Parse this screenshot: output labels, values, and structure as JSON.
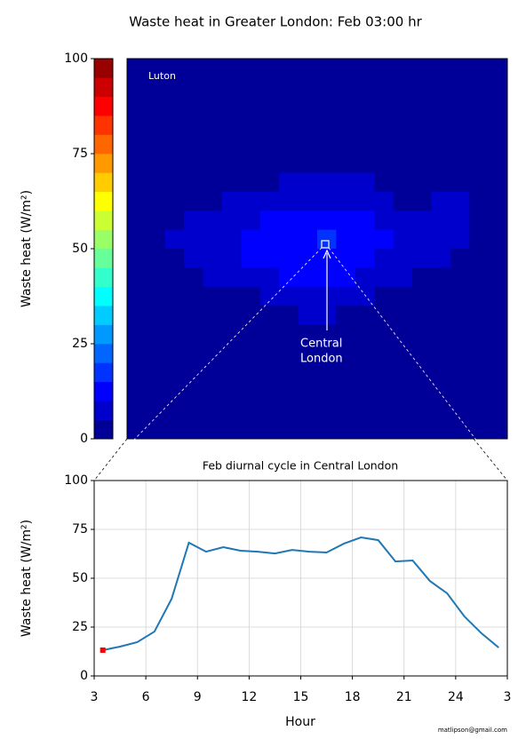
{
  "title": "Waste heat in Greater London: Feb 03:00 hr",
  "footer": "matlipson@gmail.com",
  "chart_data": [
    {
      "type": "heatmap",
      "colormap": "jet",
      "levels": 20,
      "colorbar": {
        "label": "Waste heat (W/m²)",
        "lim": [
          0,
          100
        ],
        "ticks": [
          0,
          25,
          50,
          75,
          100
        ]
      },
      "annotations": [
        {
          "lines": [
            "Luton"
          ]
        },
        {
          "lines": [
            "Central",
            "London"
          ]
        }
      ],
      "values": [
        [
          2,
          2,
          2,
          2,
          2,
          2,
          2,
          2,
          2,
          2,
          2,
          2,
          2,
          2,
          2,
          2,
          2,
          2,
          2,
          2
        ],
        [
          2,
          2,
          4,
          2,
          2,
          2,
          2,
          2,
          2,
          2,
          2,
          2,
          2,
          2,
          2,
          2,
          2,
          2,
          2,
          2
        ],
        [
          2,
          2,
          2,
          2,
          2,
          2,
          2,
          2,
          2,
          2,
          2,
          2,
          2,
          2,
          2,
          2,
          2,
          2,
          2,
          2
        ],
        [
          2,
          2,
          2,
          2,
          2,
          2,
          2,
          2,
          2,
          2,
          2,
          2,
          2,
          2,
          2,
          2,
          2,
          2,
          2,
          2
        ],
        [
          2,
          2,
          2,
          2,
          2,
          2,
          2,
          2,
          2,
          2,
          2,
          2,
          2,
          2,
          2,
          2,
          2,
          2,
          2,
          2
        ],
        [
          2,
          2,
          2,
          2,
          2,
          2,
          2,
          2,
          2,
          2,
          2,
          2,
          2,
          2,
          2,
          2,
          2,
          2,
          2,
          2
        ],
        [
          2,
          2,
          2,
          2,
          2,
          2,
          2,
          2,
          6,
          6,
          6,
          6,
          6,
          2,
          2,
          2,
          2,
          2,
          2,
          2
        ],
        [
          2,
          2,
          2,
          2,
          2,
          8,
          8,
          8,
          8,
          8,
          8,
          8,
          8,
          8,
          2,
          2,
          6,
          6,
          2,
          2
        ],
        [
          2,
          2,
          2,
          8,
          8,
          8,
          8,
          11,
          11,
          11,
          11,
          11,
          11,
          8,
          8,
          8,
          8,
          8,
          2,
          2
        ],
        [
          2,
          2,
          8,
          8,
          8,
          8,
          12,
          12,
          12,
          12,
          16,
          12,
          12,
          12,
          8,
          8,
          8,
          8,
          2,
          2
        ],
        [
          2,
          2,
          2,
          8,
          8,
          8,
          11,
          11,
          11,
          11,
          11,
          11,
          11,
          8,
          8,
          8,
          8,
          2,
          2,
          2
        ],
        [
          2,
          2,
          2,
          2,
          7,
          7,
          7,
          7,
          10,
          10,
          10,
          10,
          7,
          7,
          7,
          2,
          2,
          2,
          2,
          2
        ],
        [
          2,
          2,
          2,
          2,
          2,
          2,
          2,
          6,
          6,
          6,
          6,
          6,
          6,
          2,
          2,
          2,
          2,
          2,
          2,
          2
        ],
        [
          2,
          2,
          2,
          2,
          2,
          2,
          2,
          2,
          2,
          5,
          5,
          2,
          2,
          2,
          2,
          2,
          2,
          2,
          2,
          2
        ],
        [
          2,
          2,
          2,
          2,
          2,
          2,
          2,
          2,
          2,
          2,
          2,
          2,
          2,
          2,
          2,
          2,
          2,
          2,
          2,
          2
        ],
        [
          2,
          2,
          2,
          2,
          2,
          2,
          2,
          2,
          2,
          2,
          2,
          2,
          2,
          2,
          2,
          2,
          2,
          2,
          2,
          2
        ],
        [
          2,
          2,
          2,
          2,
          2,
          2,
          2,
          2,
          2,
          2,
          2,
          2,
          2,
          2,
          2,
          2,
          2,
          2,
          2,
          2
        ],
        [
          2,
          2,
          2,
          2,
          2,
          2,
          2,
          2,
          2,
          2,
          2,
          2,
          2,
          2,
          2,
          2,
          2,
          2,
          2,
          2
        ],
        [
          2,
          2,
          2,
          2,
          2,
          2,
          2,
          2,
          2,
          2,
          2,
          2,
          2,
          2,
          2,
          2,
          2,
          2,
          2,
          2
        ],
        [
          2,
          2,
          2,
          2,
          2,
          2,
          2,
          2,
          2,
          2,
          2,
          2,
          2,
          2,
          2,
          2,
          2,
          2,
          2,
          2
        ]
      ]
    },
    {
      "type": "line",
      "title": "Feb diurnal cycle in Central London",
      "x_label": "Hour",
      "y_label": "Waste heat (W/m²)",
      "x": [
        3.5,
        4.5,
        5.5,
        6.5,
        7.5,
        8.5,
        9.5,
        10.5,
        11.5,
        12.5,
        13.5,
        14.5,
        15.5,
        16.5,
        17.5,
        18.5,
        19.5,
        20.5,
        21.5,
        22.5,
        23.5,
        24.5,
        25.5,
        26.5
      ],
      "values": [
        13.2,
        15,
        17.3,
        22.7,
        39.5,
        68.2,
        63.6,
        65.9,
        64.1,
        63.6,
        62.7,
        64.5,
        63.6,
        63.2,
        67.7,
        70.9,
        69.5,
        58.6,
        59.1,
        48.6,
        42.3,
        30.5,
        21.8,
        14.5
      ],
      "color": "#1f77b4",
      "highlight_index": 0,
      "highlight_color": "#ff0000",
      "xlim": [
        3,
        27
      ],
      "xticks": [
        3,
        6,
        9,
        12,
        15,
        18,
        21,
        24,
        {
          "value": 27,
          "label": "3"
        }
      ],
      "ylim": [
        0,
        100
      ],
      "yticks": [
        0,
        25,
        50,
        75,
        100
      ],
      "grid": true
    }
  ]
}
